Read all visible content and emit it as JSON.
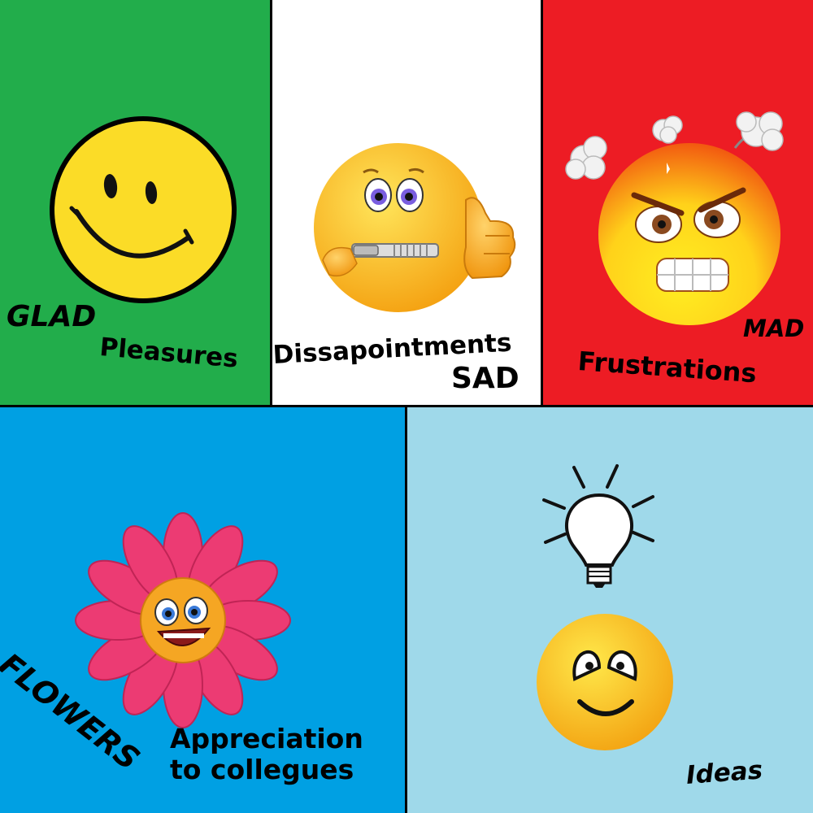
{
  "glad": {
    "title": "GLAD",
    "subtitle": "Pleasures",
    "bg": "#22ad4b"
  },
  "sad": {
    "title": "SAD",
    "subtitle": "Dissapointments",
    "bg": "#ffffff"
  },
  "mad": {
    "title": "MAD",
    "subtitle": "Frustrations",
    "bg": "#ed1c24"
  },
  "flowers": {
    "title": "FLOWERS",
    "line1": "Appreciation",
    "line2": "to collegues",
    "bg": "#00a0e3"
  },
  "ideas": {
    "title": "Ideas",
    "bg": "#9fd9ea"
  },
  "icons": [
    "smiley-face-icon",
    "zipped-mouth-thumbs-up-icon",
    "angry-face-icon",
    "flower-smiley-icon",
    "lightbulb-icon",
    "happy-face-icon"
  ]
}
